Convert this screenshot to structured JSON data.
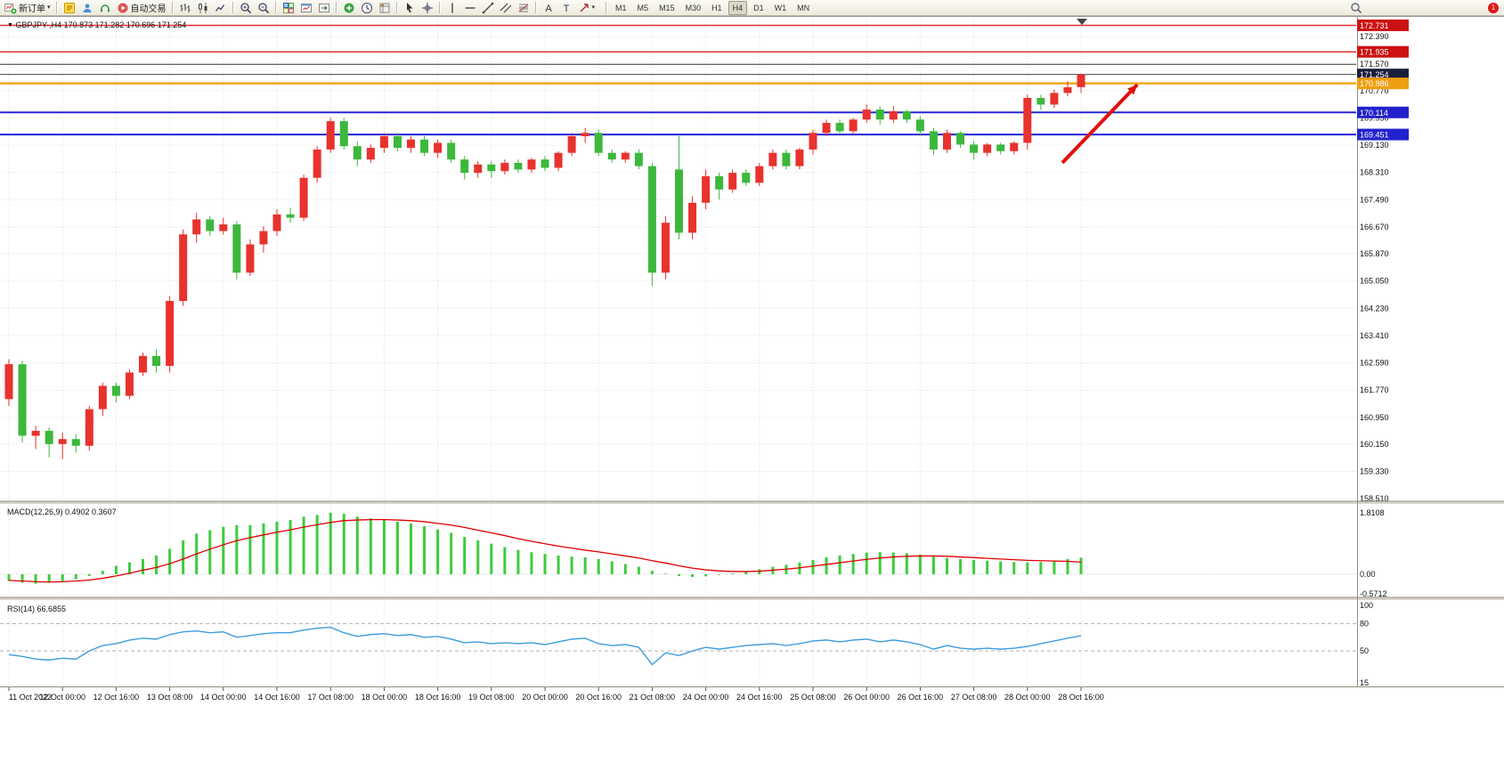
{
  "toolbar": {
    "new_order": {
      "label": "新订单",
      "icon": "new-order-icon"
    },
    "autotrading": {
      "label": "自动交易",
      "icon": "autotrading-icon"
    },
    "left_icons": [
      "mql-editor-icon",
      "profiles-icon",
      "support-icon"
    ],
    "icon_groups": [
      [
        "bar-chart-icon",
        "candlestick-icon",
        "line-chart-icon"
      ],
      [
        "zoom-in-icon",
        "zoom-out-icon"
      ],
      [
        "tile-windows-icon",
        "new-chart-icon",
        "chart-shift-icon"
      ],
      [
        "add-indicator-icon",
        "periods-icon",
        "template-icon"
      ],
      [
        "cursor-icon",
        "crosshair-icon"
      ],
      [
        "vertical-line-icon",
        "horizontal-line-icon",
        "trendline-icon",
        "equidistant-channel-icon",
        "fibonacci-icon"
      ],
      [
        "text-icon",
        "label-icon",
        "arrows-icon"
      ]
    ],
    "timeframes": [
      "M1",
      "M5",
      "M15",
      "M30",
      "H1",
      "H4",
      "D1",
      "W1",
      "MN"
    ],
    "active_timeframe": "H4",
    "notification_count": "1"
  },
  "chart_data": {
    "type": "candlestick",
    "symbol": "GBPJPY-",
    "timeframe": "H4",
    "ohlc_label": "GBPJPY-,H4  170.873 171.282 170.696 171.254",
    "current_bar": {
      "open": 170.873,
      "high": 171.282,
      "low": 170.696,
      "close": 171.254
    },
    "price_range": {
      "min": 158.46,
      "max": 172.93
    },
    "price_axis_ticks": [
      "172.390",
      "171.570",
      "170.770",
      "169.950",
      "169.130",
      "168.310",
      "167.490",
      "166.670",
      "165.870",
      "165.050",
      "164.230",
      "163.410",
      "162.590",
      "161.770",
      "160.950",
      "160.150",
      "159.330",
      "158.510"
    ],
    "time_labels": [
      "11 Oct 2022",
      "12 Oct 00:00",
      "12 Oct 16:00",
      "13 Oct 08:00",
      "14 Oct 00:00",
      "14 Oct 16:00",
      "17 Oct 08:00",
      "18 Oct 00:00",
      "18 Oct 16:00",
      "19 Oct 08:00",
      "20 Oct 00:00",
      "20 Oct 16:00",
      "21 Oct 08:00",
      "24 Oct 00:00",
      "24 Oct 16:00",
      "25 Oct 08:00",
      "26 Oct 00:00",
      "26 Oct 16:00",
      "27 Oct 08:00",
      "28 Oct 00:00",
      "28 Oct 16:00"
    ],
    "levels": [
      {
        "price": 172.731,
        "color": "#e03030",
        "width": 1.5,
        "tag": "172.731",
        "tag_bg": "#cc1111"
      },
      {
        "price": 171.935,
        "color": "#e03030",
        "width": 1.5,
        "tag": "171.935",
        "tag_bg": "#cc1111"
      },
      {
        "price": 171.56,
        "color": "#333333",
        "width": 1,
        "tag": null,
        "tag_bg": null
      },
      {
        "price": 171.254,
        "color": "#444444",
        "width": 1,
        "tag": "171.254",
        "tag_bg": "#1c1c3c"
      },
      {
        "price": 170.986,
        "color": "#f2a71b",
        "width": 2.5,
        "tag": "170.986",
        "tag_bg": "#ef9f10"
      },
      {
        "price": 170.114,
        "color": "#2626d8",
        "width": 2,
        "tag": "170.114",
        "tag_bg": "#2222cc"
      },
      {
        "price": 169.451,
        "color": "#2626d8",
        "width": 2,
        "tag": "169.451",
        "tag_bg": "#2222cc"
      }
    ],
    "candles": [
      [
        161.5,
        162.7,
        161.3,
        162.55
      ],
      [
        162.55,
        162.65,
        160.2,
        160.4
      ],
      [
        160.4,
        160.7,
        160.0,
        160.55
      ],
      [
        160.55,
        160.65,
        159.75,
        160.15
      ],
      [
        160.15,
        160.5,
        159.7,
        160.3
      ],
      [
        160.3,
        160.45,
        159.9,
        160.1
      ],
      [
        160.1,
        161.3,
        159.95,
        161.2
      ],
      [
        161.2,
        162.0,
        161.0,
        161.9
      ],
      [
        161.9,
        162.0,
        161.4,
        161.6
      ],
      [
        161.6,
        162.4,
        161.5,
        162.3
      ],
      [
        162.3,
        162.9,
        162.2,
        162.8
      ],
      [
        162.8,
        163.0,
        162.3,
        162.5
      ],
      [
        162.5,
        164.6,
        162.3,
        164.45
      ],
      [
        164.45,
        166.6,
        164.3,
        166.45
      ],
      [
        166.45,
        167.1,
        166.2,
        166.9
      ],
      [
        166.9,
        167.0,
        166.4,
        166.55
      ],
      [
        166.55,
        166.95,
        166.45,
        166.75
      ],
      [
        166.75,
        166.85,
        165.1,
        165.3
      ],
      [
        165.3,
        166.3,
        165.2,
        166.15
      ],
      [
        166.15,
        166.7,
        165.9,
        166.55
      ],
      [
        166.55,
        167.2,
        166.4,
        167.05
      ],
      [
        167.05,
        167.25,
        166.8,
        166.95
      ],
      [
        166.95,
        168.25,
        166.85,
        168.15
      ],
      [
        168.15,
        169.1,
        168.0,
        169.0
      ],
      [
        169.0,
        169.95,
        168.9,
        169.85
      ],
      [
        169.85,
        169.95,
        169.0,
        169.1
      ],
      [
        169.1,
        169.25,
        168.5,
        168.7
      ],
      [
        168.7,
        169.15,
        168.6,
        169.05
      ],
      [
        169.05,
        169.5,
        168.9,
        169.4
      ],
      [
        169.4,
        169.5,
        168.95,
        169.05
      ],
      [
        169.05,
        169.4,
        168.9,
        169.3
      ],
      [
        169.3,
        169.4,
        168.8,
        168.9
      ],
      [
        168.9,
        169.3,
        168.75,
        169.2
      ],
      [
        169.2,
        169.3,
        168.6,
        168.7
      ],
      [
        168.7,
        168.8,
        168.1,
        168.3
      ],
      [
        168.3,
        168.65,
        168.15,
        168.55
      ],
      [
        168.55,
        168.65,
        168.15,
        168.35
      ],
      [
        168.35,
        168.7,
        168.25,
        168.6
      ],
      [
        168.6,
        168.7,
        168.3,
        168.4
      ],
      [
        168.4,
        168.75,
        168.3,
        168.7
      ],
      [
        168.7,
        168.8,
        168.35,
        168.45
      ],
      [
        168.45,
        168.95,
        168.35,
        168.9
      ],
      [
        168.9,
        169.5,
        168.8,
        169.4
      ],
      [
        169.4,
        169.65,
        169.2,
        169.5
      ],
      [
        169.5,
        169.6,
        168.8,
        168.9
      ],
      [
        168.9,
        169.0,
        168.6,
        168.7
      ],
      [
        168.7,
        168.95,
        168.6,
        168.9
      ],
      [
        168.9,
        169.0,
        168.4,
        168.5
      ],
      [
        168.5,
        168.6,
        164.9,
        165.3
      ],
      [
        165.3,
        167.0,
        165.1,
        166.8
      ],
      [
        168.4,
        169.4,
        166.3,
        166.5
      ],
      [
        166.5,
        167.6,
        166.3,
        167.4
      ],
      [
        167.4,
        168.4,
        167.2,
        168.2
      ],
      [
        168.2,
        168.3,
        167.5,
        167.8
      ],
      [
        167.8,
        168.4,
        167.7,
        168.3
      ],
      [
        168.3,
        168.4,
        167.9,
        168.0
      ],
      [
        168.0,
        168.6,
        167.9,
        168.5
      ],
      [
        168.5,
        169.0,
        168.4,
        168.9
      ],
      [
        168.9,
        169.0,
        168.4,
        168.5
      ],
      [
        168.5,
        169.05,
        168.4,
        169.0
      ],
      [
        169.0,
        169.6,
        168.85,
        169.5
      ],
      [
        169.5,
        169.9,
        169.4,
        169.8
      ],
      [
        169.8,
        169.9,
        169.45,
        169.55
      ],
      [
        169.55,
        169.95,
        169.45,
        169.9
      ],
      [
        169.9,
        170.35,
        169.8,
        170.2
      ],
      [
        170.2,
        170.3,
        169.75,
        169.9
      ],
      [
        169.9,
        170.3,
        169.8,
        170.15
      ],
      [
        170.15,
        170.2,
        169.8,
        169.9
      ],
      [
        169.9,
        170.0,
        169.4,
        169.55
      ],
      [
        169.55,
        169.65,
        168.85,
        169.0
      ],
      [
        169.0,
        169.6,
        168.9,
        169.5
      ],
      [
        169.5,
        169.55,
        169.05,
        169.15
      ],
      [
        169.15,
        169.25,
        168.7,
        168.9
      ],
      [
        168.9,
        169.2,
        168.8,
        169.15
      ],
      [
        169.15,
        169.2,
        168.85,
        168.95
      ],
      [
        168.95,
        169.25,
        168.85,
        169.2
      ],
      [
        169.2,
        170.65,
        169.0,
        170.55
      ],
      [
        170.55,
        170.65,
        170.2,
        170.35
      ],
      [
        170.35,
        170.8,
        170.25,
        170.7
      ],
      [
        170.7,
        171.05,
        170.6,
        170.87
      ],
      [
        170.873,
        171.282,
        170.696,
        171.254
      ]
    ],
    "arrow": {
      "from_idx": 78.6,
      "from_price": 168.6,
      "to_idx": 84.2,
      "to_price": 170.95,
      "color": "#e01010"
    },
    "macd": {
      "label_text": "MACD(12,26,9) 0.4902 0.3607",
      "axis_labels": [
        {
          "text": "1.8108",
          "value": 1.8108
        },
        {
          "text": "0.00",
          "value": 0
        },
        {
          "text": "-0.5712",
          "value": -0.5712
        }
      ],
      "histogram": [
        -0.2,
        -0.25,
        -0.28,
        -0.25,
        -0.2,
        -0.15,
        -0.05,
        0.1,
        0.25,
        0.35,
        0.45,
        0.55,
        0.75,
        1.0,
        1.2,
        1.3,
        1.4,
        1.45,
        1.45,
        1.5,
        1.55,
        1.6,
        1.7,
        1.75,
        1.81,
        1.78,
        1.7,
        1.65,
        1.6,
        1.55,
        1.5,
        1.42,
        1.32,
        1.22,
        1.1,
        1.0,
        0.9,
        0.8,
        0.72,
        0.65,
        0.6,
        0.55,
        0.52,
        0.5,
        0.45,
        0.38,
        0.3,
        0.22,
        0.1,
        0.02,
        -0.05,
        -0.08,
        -0.06,
        -0.02,
        0.02,
        0.08,
        0.15,
        0.22,
        0.28,
        0.35,
        0.42,
        0.5,
        0.55,
        0.6,
        0.64,
        0.65,
        0.64,
        0.62,
        0.58,
        0.52,
        0.48,
        0.45,
        0.42,
        0.4,
        0.38,
        0.36,
        0.35,
        0.36,
        0.4,
        0.45,
        0.49
      ],
      "signal": [
        -0.18,
        -0.2,
        -0.22,
        -0.23,
        -0.22,
        -0.2,
        -0.17,
        -0.12,
        -0.05,
        0.03,
        0.12,
        0.2,
        0.31,
        0.45,
        0.6,
        0.74,
        0.87,
        0.99,
        1.08,
        1.16,
        1.24,
        1.31,
        1.39,
        1.46,
        1.53,
        1.58,
        1.6,
        1.61,
        1.61,
        1.6,
        1.58,
        1.55,
        1.5,
        1.45,
        1.38,
        1.3,
        1.22,
        1.14,
        1.05,
        0.97,
        0.9,
        0.83,
        0.77,
        0.71,
        0.66,
        0.6,
        0.54,
        0.48,
        0.4,
        0.33,
        0.25,
        0.18,
        0.13,
        0.1,
        0.08,
        0.08,
        0.09,
        0.12,
        0.15,
        0.19,
        0.24,
        0.29,
        0.34,
        0.39,
        0.44,
        0.48,
        0.51,
        0.53,
        0.54,
        0.54,
        0.53,
        0.51,
        0.49,
        0.47,
        0.45,
        0.43,
        0.41,
        0.4,
        0.39,
        0.38,
        0.36
      ]
    },
    "rsi": {
      "label_text": "RSI(14) 66.6855",
      "axis_labels": [
        {
          "text": "100",
          "value": 100,
          "dashed": false
        },
        {
          "text": "80",
          "value": 80,
          "dashed": true
        },
        {
          "text": "50",
          "value": 50,
          "dashed": true
        },
        {
          "text": "15",
          "value": 15,
          "dashed": false
        }
      ],
      "values": [
        46,
        44,
        41,
        40,
        42,
        41,
        50,
        56,
        58,
        62,
        64,
        63,
        68,
        71,
        72,
        70,
        71,
        65,
        67,
        69,
        70,
        70,
        73,
        75,
        76,
        70,
        66,
        68,
        69,
        67,
        68,
        65,
        66,
        63,
        59,
        60,
        58,
        59,
        58,
        59,
        57,
        60,
        63,
        64,
        58,
        56,
        57,
        54,
        35,
        48,
        45,
        50,
        54,
        52,
        54,
        56,
        57,
        58,
        56,
        58,
        61,
        62,
        60,
        62,
        63,
        60,
        62,
        60,
        57,
        52,
        56,
        53,
        52,
        53,
        52,
        53,
        55,
        58,
        61,
        64,
        66.69
      ]
    },
    "colors": {
      "up": "#e8322d",
      "down": "#3cb83c",
      "macd": "#3ecb3e",
      "signal": "#e00000",
      "rsi": "#3e9ddd"
    }
  }
}
